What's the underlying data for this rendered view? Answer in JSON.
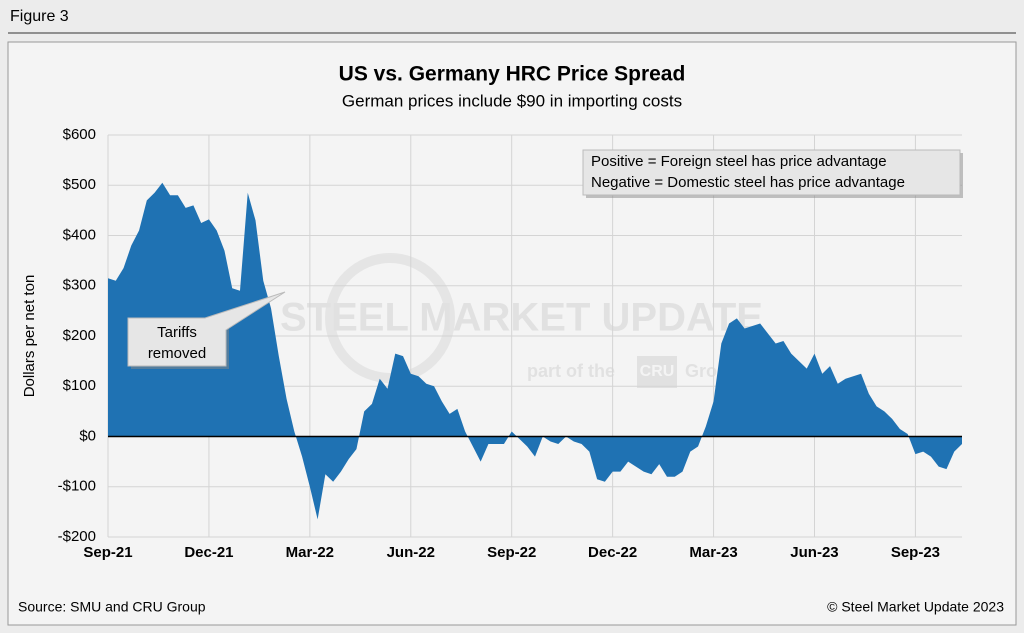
{
  "figure_label": "Figure 3",
  "source": "Source: SMU and CRU Group",
  "copyright": "© Steel Market Update 2023",
  "chart_data": {
    "type": "area",
    "title": "US vs. Germany HRC Price Spread",
    "subtitle": "German prices include $90 in importing costs",
    "y_axis_label": "Dollars per net ton",
    "color": "#1f72b3",
    "grid": true,
    "categories": [
      "Sep-21",
      null,
      null,
      null,
      null,
      null,
      null,
      null,
      null,
      null,
      null,
      null,
      null,
      "Dec-21",
      null,
      null,
      null,
      null,
      null,
      null,
      null,
      null,
      null,
      null,
      null,
      null,
      "Mar-22",
      null,
      null,
      null,
      null,
      null,
      null,
      null,
      null,
      null,
      null,
      null,
      null,
      "Jun-22",
      null,
      null,
      null,
      null,
      null,
      null,
      null,
      null,
      null,
      null,
      null,
      null,
      "Sep-22",
      null,
      null,
      null,
      null,
      null,
      null,
      null,
      null,
      null,
      null,
      null,
      null,
      "Dec-22",
      null,
      null,
      null,
      null,
      null,
      null,
      null,
      null,
      null,
      null,
      null,
      null,
      "Mar-23",
      null,
      null,
      null,
      null,
      null,
      null,
      null,
      null,
      null,
      null,
      null,
      null,
      "Jun-23",
      null,
      null,
      null,
      null,
      null,
      null,
      null,
      null,
      null,
      null,
      null,
      null,
      "Sep-23",
      null,
      null,
      null,
      null,
      null,
      null
    ],
    "values": [
      315,
      310,
      335,
      380,
      410,
      470,
      485,
      505,
      480,
      480,
      455,
      460,
      425,
      432,
      410,
      370,
      295,
      290,
      485,
      430,
      310,
      255,
      160,
      75,
      10,
      -40,
      -100,
      -165,
      -75,
      -90,
      -70,
      -45,
      -25,
      50,
      65,
      115,
      95,
      165,
      160,
      125,
      120,
      105,
      100,
      70,
      45,
      55,
      10,
      -20,
      -50,
      -15,
      -15,
      -15,
      10,
      -5,
      -20,
      -40,
      0,
      -10,
      -15,
      0,
      -10,
      -15,
      -30,
      -85,
      -90,
      -70,
      -70,
      -50,
      -60,
      -70,
      -75,
      -55,
      -80,
      -80,
      -70,
      -30,
      -20,
      20,
      70,
      185,
      225,
      235,
      215,
      220,
      225,
      205,
      185,
      190,
      165,
      150,
      135,
      165,
      125,
      140,
      105,
      115,
      120,
      125,
      85,
      60,
      50,
      35,
      15,
      5,
      -35,
      -30,
      -40,
      -60,
      -65,
      -30,
      -15
    ],
    "ylim": [
      -200,
      600
    ],
    "yticks": [
      {
        "value": -200,
        "label": "-$200"
      },
      {
        "value": -100,
        "label": "-$100"
      },
      {
        "value": 0,
        "label": "$0"
      },
      {
        "value": 100,
        "label": "$100"
      },
      {
        "value": 200,
        "label": "$200"
      },
      {
        "value": 300,
        "label": "$300"
      },
      {
        "value": 400,
        "label": "$400"
      },
      {
        "value": 500,
        "label": "$500"
      },
      {
        "value": 600,
        "label": "$600"
      }
    ],
    "annotations": [
      "Positive = Foreign steel has price advantage",
      "Negative = Domestic steel has price advantage",
      "Tariffs",
      "removed"
    ],
    "watermark": [
      "STEEL MARKET UPDATE",
      "part of the",
      "CRU",
      "Group"
    ]
  }
}
